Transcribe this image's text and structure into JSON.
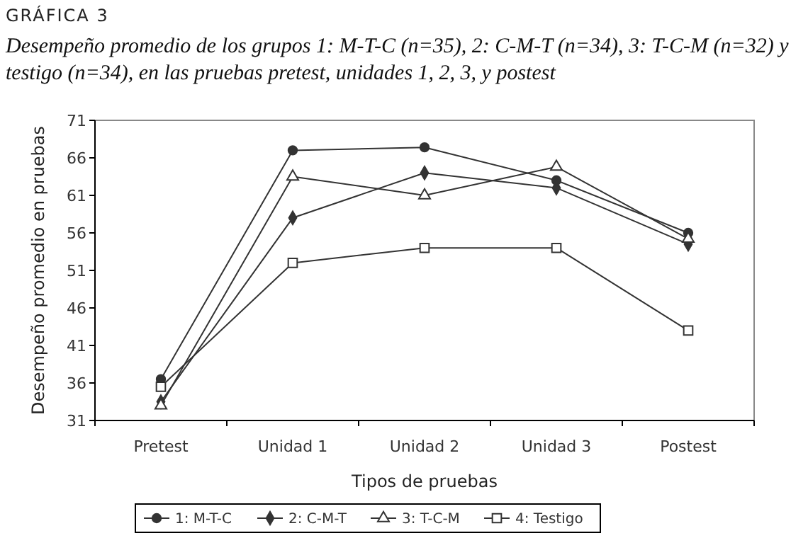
{
  "chart_data": {
    "type": "line",
    "title": "GRÁFICA 3",
    "subtitle": "Desempeño promedio de los grupos 1: M-T-C (n=35), 2: C-M-T (n=34), 3: T-C-M (n=32) y testigo (n=34), en las pruebas pretest, unidades 1, 2, 3, y postest",
    "xlabel": "Tipos de pruebas",
    "ylabel": "Desempeño promedio en pruebas",
    "categories": [
      "Pretest",
      "Unidad 1",
      "Unidad 2",
      "Unidad 3",
      "Postest"
    ],
    "series": [
      {
        "name": "1: M-T-C",
        "color": "#333333",
        "marker": "circle",
        "values": [
          36.5,
          67,
          67.4,
          63,
          56
        ]
      },
      {
        "name": "2: C-M-T",
        "color": "#333333",
        "marker": "diamond",
        "values": [
          33.5,
          58,
          64,
          62,
          54.5
        ]
      },
      {
        "name": "3: T-C-M",
        "color": "#333333",
        "marker": "triangle",
        "values": [
          33,
          63.5,
          61,
          64.8,
          55.2
        ]
      },
      {
        "name": "4: Testigo",
        "color": "#333333",
        "marker": "square",
        "values": [
          35.5,
          52,
          54,
          54,
          43
        ]
      }
    ],
    "ylim": [
      31,
      71
    ],
    "yticks": [
      31,
      36,
      41,
      46,
      51,
      56,
      61,
      66,
      71
    ],
    "grid": false,
    "legend": "bottom"
  }
}
